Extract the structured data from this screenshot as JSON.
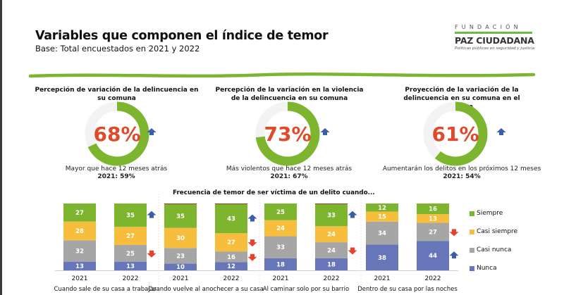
{
  "header": {
    "title": "Variables que componen el índice de temor",
    "subtitle": "Base: Total encuestados en 2021 y 2022"
  },
  "logo": {
    "top": "FUNDACIÓN",
    "main": "PAZ CIUDADANA",
    "tagline": "Políticas públicas en seguridad y justicia"
  },
  "colors": {
    "green": "#7db52f",
    "accent_red": "#e04a2a",
    "arrow_up": "#3b5ea8",
    "arrow_down": "#e8412c",
    "siempre": "#7db52f",
    "casi_siempre": "#f7be3e",
    "casi_nunca": "#a6a6a6",
    "nunca": "#6776b8"
  },
  "kpis": [
    {
      "title": "Percepción de variación de la delincuencia en su comuna",
      "value": 68,
      "value_label": "68%",
      "trend": "up",
      "caption": "Mayor que hace 12 meses atrás",
      "previous": "2021: 59%"
    },
    {
      "title": "Percepción de la variación en la violencia de la delincuencia en su comuna",
      "value": 73,
      "value_label": "73%",
      "trend": "up",
      "caption": "Más violentos que hace 12 meses atrás",
      "previous": "2021: 67%"
    },
    {
      "title": "Proyección de la variación de la delincuencia en su comuna en el futuro",
      "value": 61,
      "value_label": "61%",
      "trend": "up",
      "caption": "Aumentarán los delitos en los próximos 12 meses",
      "previous": "2021: 54%"
    }
  ],
  "chart_data": {
    "type": "bar",
    "stacked": true,
    "title": "Frecuencia de temor de ser víctima de un delito cuando...",
    "legend_position": "right",
    "series_order": [
      "Nunca",
      "Casi nunca",
      "Casi siempre",
      "Siempre"
    ],
    "legend": [
      "Siempre",
      "Casi siempre",
      "Casi nunca",
      "Nunca"
    ],
    "groups": [
      {
        "label": "Cuando sale de su casa a trabajar",
        "bars": [
          {
            "year": "2021",
            "Siempre": 27,
            "Casi siempre": 28,
            "Casi nunca": 32,
            "Nunca": 13,
            "other": 0
          },
          {
            "year": "2022",
            "Siempre": 35,
            "Casi siempre": 27,
            "Casi nunca": 25,
            "Nunca": 13,
            "other": 0
          }
        ],
        "arrows": {
          "Siempre": "up",
          "Casi nunca": "down"
        }
      },
      {
        "label": "Cuando vuelve al anochecer a su casa",
        "bars": [
          {
            "year": "2021",
            "Siempre": 35,
            "Casi siempre": 30,
            "Casi nunca": 23,
            "Nunca": 10,
            "other": 1
          },
          {
            "year": "2022",
            "Siempre": 43,
            "Casi siempre": 27,
            "Casi nunca": 16,
            "Nunca": 12,
            "other": 1
          }
        ],
        "arrows": {
          "Siempre": "up",
          "Casi siempre": "down",
          "Casi nunca": "down"
        }
      },
      {
        "label": "Al caminar solo por su barrio",
        "bars": [
          {
            "year": "2021",
            "Siempre": 25,
            "Casi siempre": 24,
            "Casi nunca": 33,
            "Nunca": 18,
            "other": 0
          },
          {
            "year": "2022",
            "Siempre": 33,
            "Casi siempre": 24,
            "Casi nunca": 24,
            "Nunca": 18,
            "other": 1
          }
        ],
        "arrows": {
          "Siempre": "up",
          "Casi nunca": "down"
        }
      },
      {
        "label": "Dentro de su casa por las noches",
        "bars": [
          {
            "year": "2021",
            "Siempre": 12,
            "Casi siempre": 15,
            "Casi nunca": 34,
            "Nunca": 38,
            "other": 0
          },
          {
            "year": "2022",
            "Siempre": 16,
            "Casi siempre": 13,
            "Casi nunca": 27,
            "Nunca": 44,
            "other": 0
          }
        ],
        "arrows": {
          "Casi nunca": "down",
          "Nunca": "up"
        }
      }
    ]
  }
}
